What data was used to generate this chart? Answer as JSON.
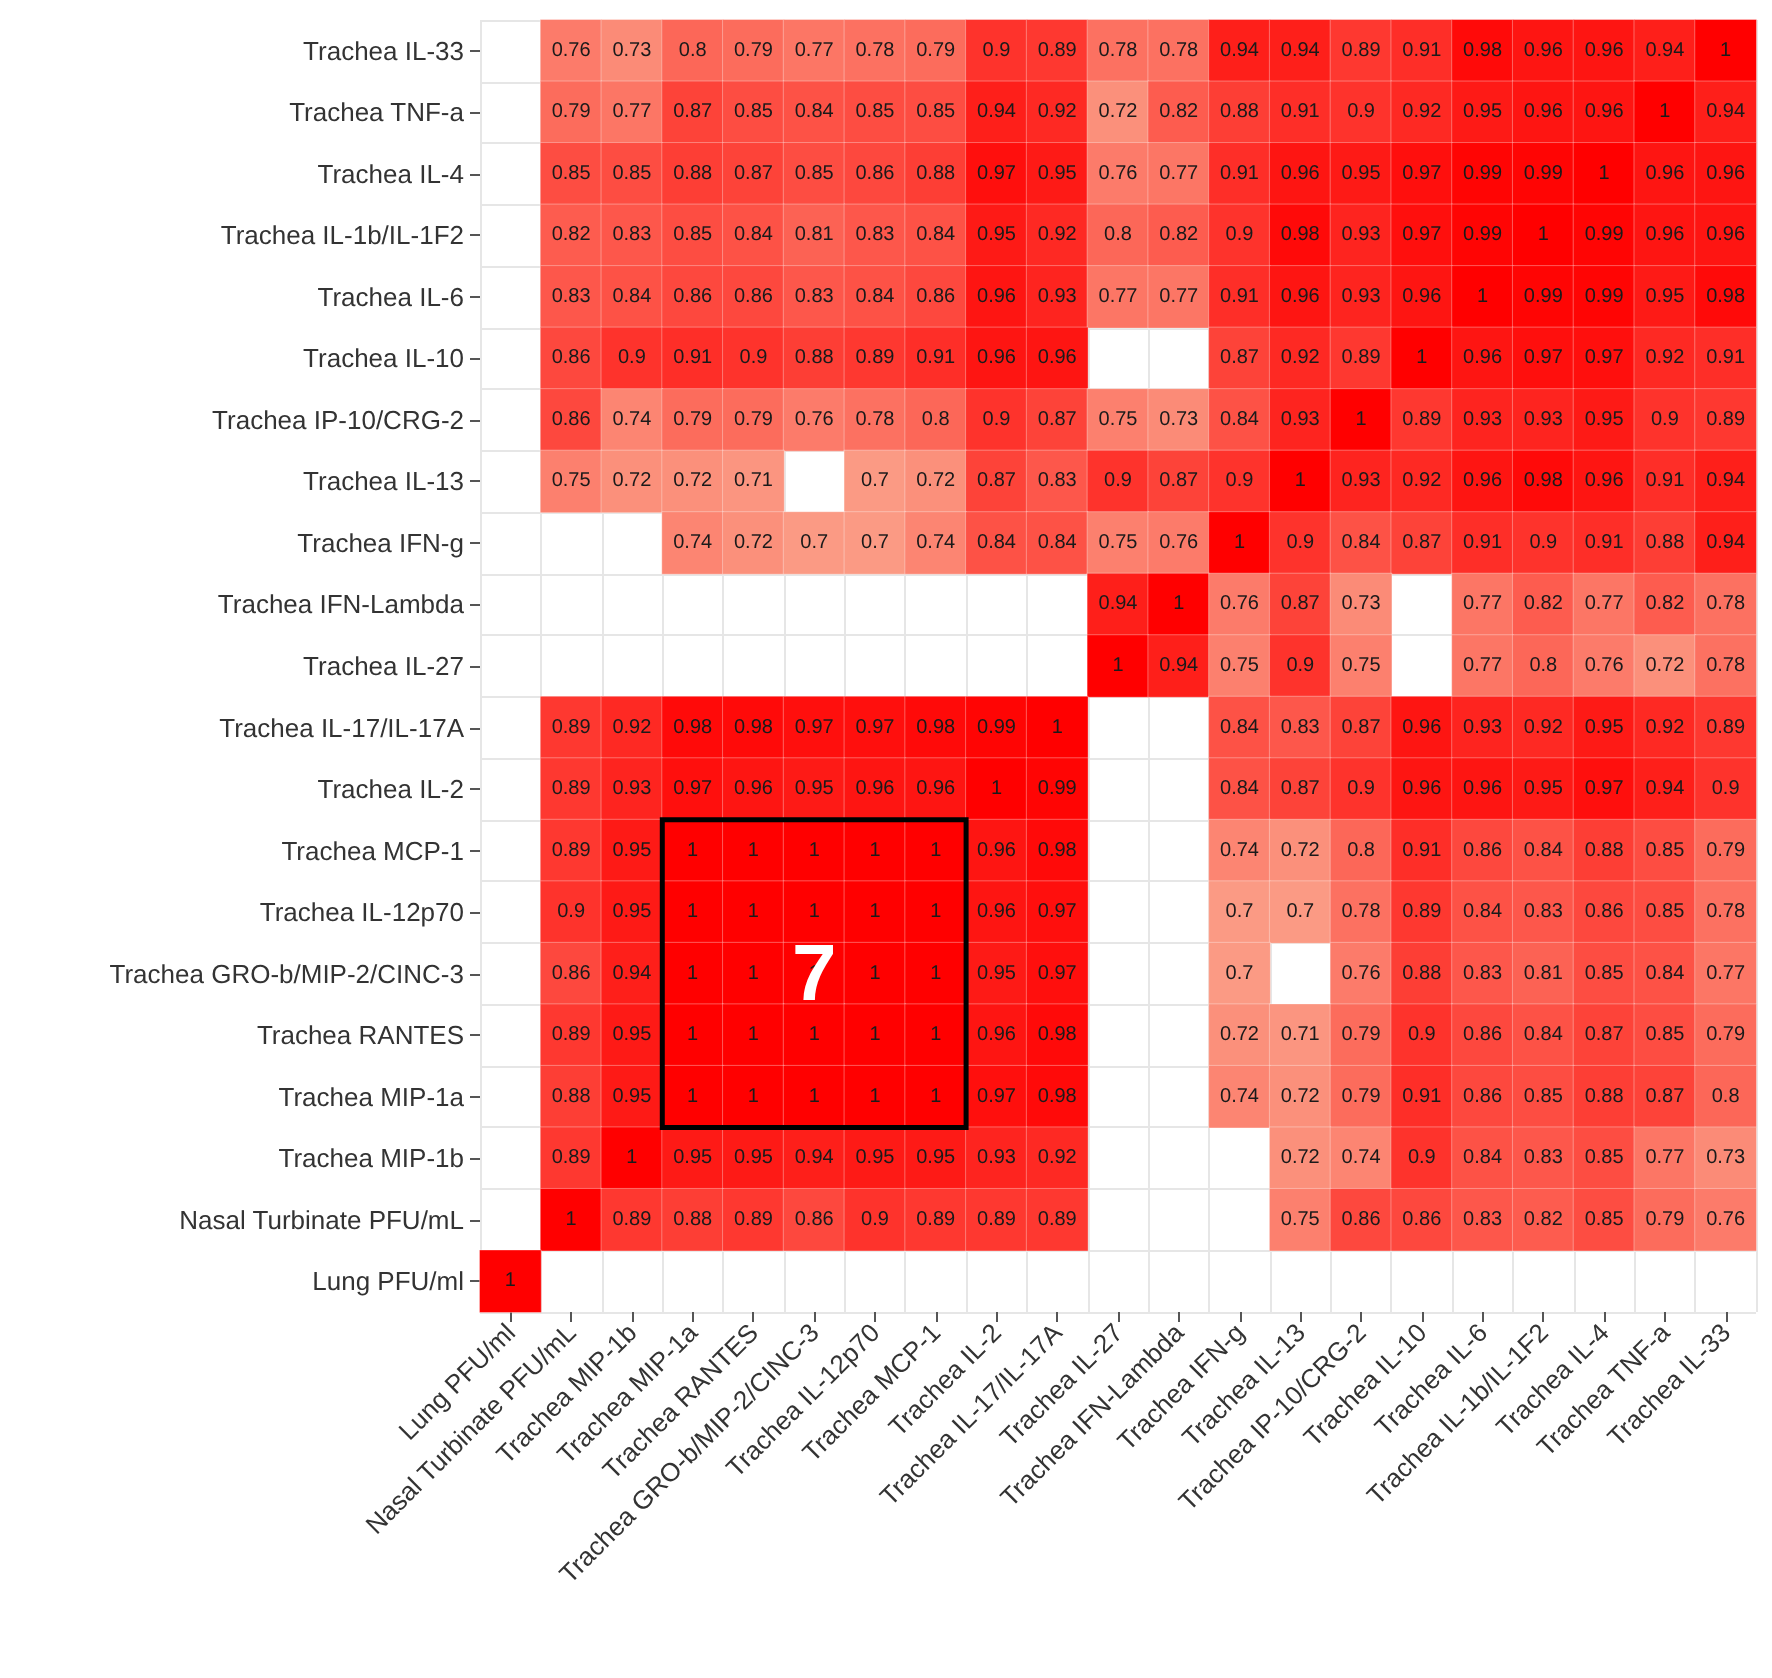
{
  "chart_data": {
    "type": "heatmap",
    "categories": [
      "Lung PFU/ml",
      "Nasal Turbinate PFU/mL",
      "Trachea MIP-1b",
      "Trachea MIP-1a",
      "Trachea RANTES",
      "Trachea GRO-b/MIP-2/CINC-3",
      "Trachea IL-12p70",
      "Trachea MCP-1",
      "Trachea IL-2",
      "Trachea IL-17/IL-17A",
      "Trachea IL-27",
      "Trachea IFN-Lambda",
      "Trachea IFN-g",
      "Trachea IL-13",
      "Trachea IP-10/CRG-2",
      "Trachea IL-10",
      "Trachea IL-6",
      "Trachea IL-1b/IL-1F2",
      "Trachea IL-4",
      "Trachea TNF-a",
      "Trachea IL-33"
    ],
    "y_categories": [
      "Trachea IL-33",
      "Trachea TNF-a",
      "Trachea IL-4",
      "Trachea IL-1b/IL-1F2",
      "Trachea IL-6",
      "Trachea IL-10",
      "Trachea IP-10/CRG-2",
      "Trachea IL-13",
      "Trachea IFN-g",
      "Trachea IFN-Lambda",
      "Trachea IL-27",
      "Trachea IL-17/IL-17A",
      "Trachea IL-2",
      "Trachea MCP-1",
      "Trachea IL-12p70",
      "Trachea GRO-b/MIP-2/CINC-3",
      "Trachea RANTES",
      "Trachea MIP-1a",
      "Trachea MIP-1b",
      "Nasal Turbinate PFU/mL",
      "Lung PFU/ml"
    ],
    "cells": [
      [
        null,
        0.76,
        0.73,
        0.8,
        0.79,
        0.77,
        0.78,
        0.79,
        0.9,
        0.89,
        0.78,
        0.78,
        0.94,
        0.94,
        0.89,
        0.91,
        0.98,
        0.96,
        0.96,
        0.94,
        1
      ],
      [
        null,
        0.79,
        0.77,
        0.87,
        0.85,
        0.84,
        0.85,
        0.85,
        0.94,
        0.92,
        0.72,
        0.82,
        0.88,
        0.91,
        0.9,
        0.92,
        0.95,
        0.96,
        0.96,
        1,
        0.94
      ],
      [
        null,
        0.85,
        0.85,
        0.88,
        0.87,
        0.85,
        0.86,
        0.88,
        0.97,
        0.95,
        0.76,
        0.77,
        0.91,
        0.96,
        0.95,
        0.97,
        0.99,
        0.99,
        1,
        0.96,
        0.96
      ],
      [
        null,
        0.82,
        0.83,
        0.85,
        0.84,
        0.81,
        0.83,
        0.84,
        0.95,
        0.92,
        0.8,
        0.82,
        0.9,
        0.98,
        0.93,
        0.97,
        0.99,
        1,
        0.99,
        0.96,
        0.96
      ],
      [
        null,
        0.83,
        0.84,
        0.86,
        0.86,
        0.83,
        0.84,
        0.86,
        0.96,
        0.93,
        0.77,
        0.77,
        0.91,
        0.96,
        0.93,
        0.96,
        1,
        0.99,
        0.99,
        0.95,
        0.98
      ],
      [
        null,
        0.86,
        0.9,
        0.91,
        0.9,
        0.88,
        0.89,
        0.91,
        0.96,
        0.96,
        null,
        null,
        0.87,
        0.92,
        0.89,
        1,
        0.96,
        0.97,
        0.97,
        0.92,
        0.91
      ],
      [
        null,
        0.86,
        0.74,
        0.79,
        0.79,
        0.76,
        0.78,
        0.8,
        0.9,
        0.87,
        0.75,
        0.73,
        0.84,
        0.93,
        1,
        0.89,
        0.93,
        0.93,
        0.95,
        0.9,
        0.89
      ],
      [
        null,
        0.75,
        0.72,
        0.72,
        0.71,
        null,
        0.7,
        0.72,
        0.87,
        0.83,
        0.9,
        0.87,
        0.9,
        1,
        0.93,
        0.92,
        0.96,
        0.98,
        0.96,
        0.91,
        0.94
      ],
      [
        null,
        null,
        null,
        0.74,
        0.72,
        0.7,
        0.7,
        0.74,
        0.84,
        0.84,
        0.75,
        0.76,
        1,
        0.9,
        0.84,
        0.87,
        0.91,
        0.9,
        0.91,
        0.88,
        0.94
      ],
      [
        null,
        null,
        null,
        null,
        null,
        null,
        null,
        null,
        null,
        null,
        0.94,
        1,
        0.76,
        0.87,
        0.73,
        null,
        0.77,
        0.82,
        0.77,
        0.82,
        0.78
      ],
      [
        null,
        null,
        null,
        null,
        null,
        null,
        null,
        null,
        null,
        null,
        1,
        0.94,
        0.75,
        0.9,
        0.75,
        null,
        0.77,
        0.8,
        0.76,
        0.72,
        0.78
      ],
      [
        null,
        0.89,
        0.92,
        0.98,
        0.98,
        0.97,
        0.97,
        0.98,
        0.99,
        1,
        null,
        null,
        0.84,
        0.83,
        0.87,
        0.96,
        0.93,
        0.92,
        0.95,
        0.92,
        0.89
      ],
      [
        null,
        0.89,
        0.93,
        0.97,
        0.96,
        0.95,
        0.96,
        0.96,
        1,
        0.99,
        null,
        null,
        0.84,
        0.87,
        0.9,
        0.96,
        0.96,
        0.95,
        0.97,
        0.94,
        0.9
      ],
      [
        null,
        0.89,
        0.95,
        1,
        1,
        1,
        1,
        1,
        0.96,
        0.98,
        null,
        null,
        0.74,
        0.72,
        0.8,
        0.91,
        0.86,
        0.84,
        0.88,
        0.85,
        0.79
      ],
      [
        null,
        0.9,
        0.95,
        1,
        1,
        1,
        1,
        1,
        0.96,
        0.97,
        null,
        null,
        0.7,
        0.7,
        0.78,
        0.89,
        0.84,
        0.83,
        0.86,
        0.85,
        0.78
      ],
      [
        null,
        0.86,
        0.94,
        1,
        1,
        1,
        1,
        1,
        0.95,
        0.97,
        null,
        null,
        0.7,
        null,
        0.76,
        0.88,
        0.83,
        0.81,
        0.85,
        0.84,
        0.77
      ],
      [
        null,
        0.89,
        0.95,
        1,
        1,
        1,
        1,
        1,
        0.96,
        0.98,
        null,
        null,
        0.72,
        0.71,
        0.79,
        0.9,
        0.86,
        0.84,
        0.87,
        0.85,
        0.79
      ],
      [
        null,
        0.88,
        0.95,
        1,
        1,
        1,
        1,
        1,
        0.97,
        0.98,
        null,
        null,
        0.74,
        0.72,
        0.79,
        0.91,
        0.86,
        0.85,
        0.88,
        0.87,
        0.8
      ],
      [
        null,
        0.89,
        1,
        0.95,
        0.95,
        0.94,
        0.95,
        0.95,
        0.93,
        0.92,
        null,
        null,
        null,
        0.72,
        0.74,
        0.9,
        0.84,
        0.83,
        0.85,
        0.77,
        0.73
      ],
      [
        null,
        1,
        0.89,
        0.88,
        0.89,
        0.86,
        0.9,
        0.89,
        0.89,
        0.89,
        null,
        null,
        null,
        0.75,
        0.86,
        0.86,
        0.83,
        0.82,
        0.85,
        0.79,
        0.76
      ],
      [
        1,
        null,
        null,
        null,
        null,
        null,
        null,
        null,
        null,
        null,
        null,
        null,
        null,
        null,
        null,
        null,
        null,
        null,
        null,
        null,
        null
      ]
    ],
    "data_labels": true,
    "grid": true,
    "annotations": [
      "7"
    ]
  }
}
